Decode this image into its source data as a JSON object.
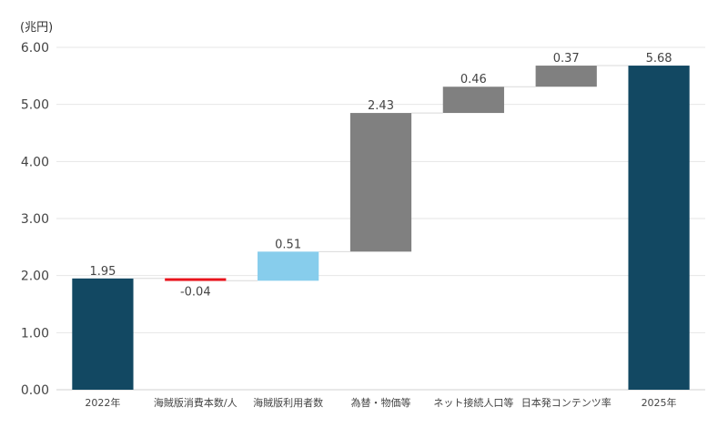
{
  "chart_data": {
    "type": "bar",
    "subtype": "waterfall",
    "unit_label": "(兆円)",
    "title": "",
    "xlabel": "",
    "ylabel": "",
    "ylim": [
      0,
      6
    ],
    "ytick_values": [
      0,
      1,
      2,
      3,
      4,
      5,
      6
    ],
    "ytick_labels": [
      "0.00",
      "1.00",
      "2.00",
      "3.00",
      "4.00",
      "5.00",
      "6.00"
    ],
    "grid": true,
    "legend": "none",
    "categories": [
      "2022年",
      "海賊版消費本数/人",
      "海賊版利用者数",
      "為替・物価等",
      "ネット接続人口等",
      "日本発コンテンツ率",
      "2025年"
    ],
    "values": [
      1.95,
      -0.04,
      0.51,
      2.43,
      0.46,
      0.37,
      5.68
    ],
    "value_labels": [
      "1.95",
      "-0.04",
      "0.51",
      "2.43",
      "0.46",
      "0.37",
      "5.68"
    ],
    "kinds": [
      "total",
      "delta",
      "delta",
      "delta",
      "delta",
      "delta",
      "total"
    ],
    "colors": [
      "#124862",
      "#e8141c",
      "#87cdec",
      "#808080",
      "#808080",
      "#808080",
      "#124862"
    ],
    "gridline_color": "#e6e6e6",
    "connector_color": "#d9d9d9"
  }
}
